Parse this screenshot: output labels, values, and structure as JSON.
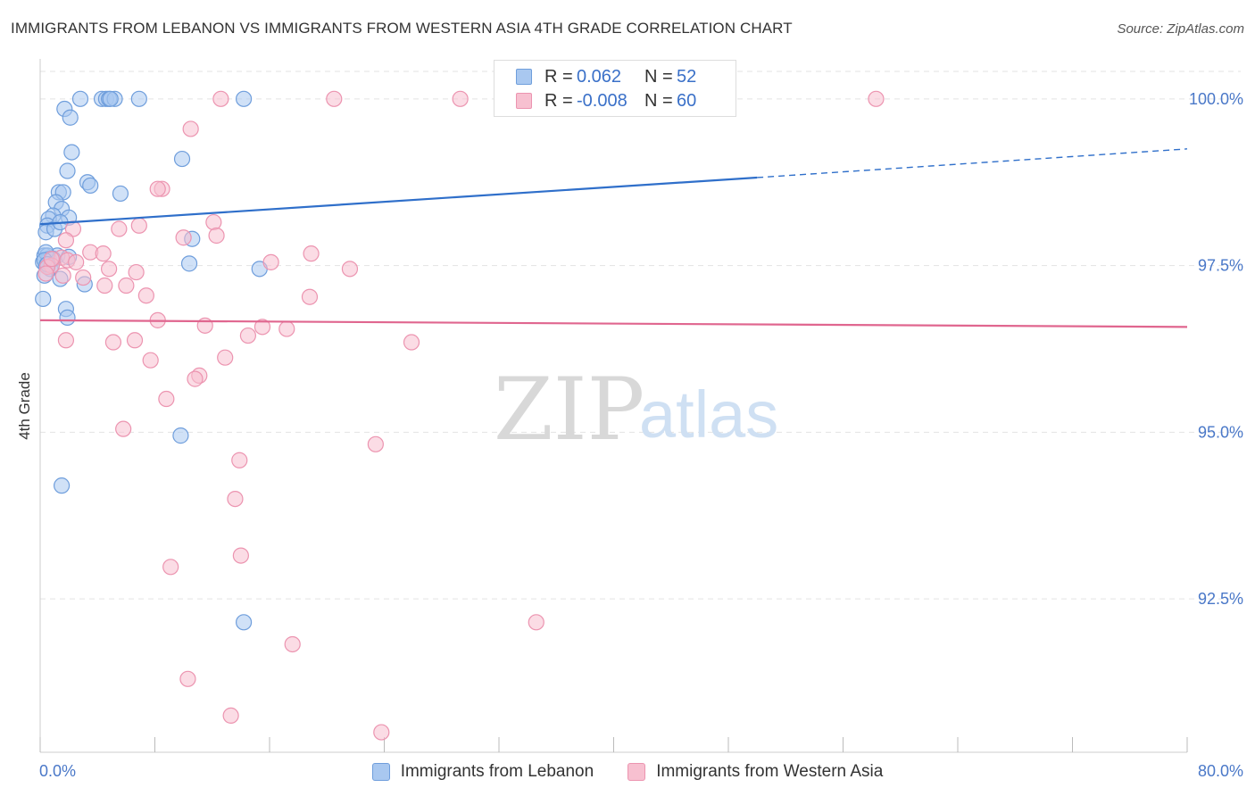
{
  "title": "IMMIGRANTS FROM LEBANON VS IMMIGRANTS FROM WESTERN ASIA 4TH GRADE CORRELATION CHART",
  "source": "Source: ZipAtlas.com",
  "watermark": {
    "zip": "ZIP",
    "atlas": "atlas"
  },
  "legend_top": {
    "rows": [
      {
        "r_label": "R =",
        "r_value": "0.062",
        "n_label": "N =",
        "n_value": "52"
      },
      {
        "r_label": "R =",
        "r_value": "-0.008",
        "n_label": "N =",
        "n_value": "60"
      }
    ]
  },
  "legend_bottom": [
    {
      "label": "Immigrants from Lebanon"
    },
    {
      "label": "Immigrants from Western Asia"
    }
  ],
  "colors": {
    "blue_fill": "#a9c8f0",
    "blue_stroke": "#6f9edc",
    "blue_line": "#2f6fca",
    "pink_fill": "#f7c0d0",
    "pink_stroke": "#ec94b0",
    "pink_line": "#e0668f",
    "tick_label": "#4a78c8",
    "grid": "#e3e3e3"
  },
  "chart_data": {
    "type": "scatter",
    "ylabel": "4th Grade",
    "xlim": [
      0,
      80
    ],
    "ylim": [
      90.2,
      100.6
    ],
    "x_tick_labels": [
      {
        "x": 0,
        "label": "0.0%"
      },
      {
        "x": 80,
        "label": "80.0%"
      }
    ],
    "y_tick_labels": [
      {
        "y": 100,
        "label": "100.0%"
      },
      {
        "y": 97.5,
        "label": "97.5%"
      },
      {
        "y": 95,
        "label": "95.0%"
      },
      {
        "y": 92.5,
        "label": "92.5%"
      }
    ],
    "grid": true,
    "series": [
      {
        "name": "Immigrants from Lebanon",
        "trend": {
          "x0": 0,
          "y0": 98.12,
          "x1": 50,
          "y1": 98.82,
          "x1_dashed": 80,
          "y1_dashed": 99.25
        },
        "points": [
          [
            2.8,
            100.0
          ],
          [
            4.3,
            100.0
          ],
          [
            4.6,
            100.0
          ],
          [
            4.8,
            100.0
          ],
          [
            5.2,
            100.0
          ],
          [
            6.9,
            100.0
          ],
          [
            14.2,
            100.0
          ],
          [
            1.7,
            99.85
          ],
          [
            2.1,
            99.72
          ],
          [
            2.2,
            99.2
          ],
          [
            9.9,
            99.1
          ],
          [
            1.9,
            98.92
          ],
          [
            3.3,
            98.75
          ],
          [
            3.5,
            98.7
          ],
          [
            1.3,
            98.6
          ],
          [
            1.6,
            98.6
          ],
          [
            5.6,
            98.58
          ],
          [
            1.1,
            98.45
          ],
          [
            1.5,
            98.35
          ],
          [
            0.9,
            98.25
          ],
          [
            2.0,
            98.22
          ],
          [
            0.6,
            98.2
          ],
          [
            0.5,
            98.1
          ],
          [
            0.4,
            98.0
          ],
          [
            10.6,
            97.9
          ],
          [
            0.3,
            97.65
          ],
          [
            0.5,
            97.65
          ],
          [
            1.2,
            97.65
          ],
          [
            2.0,
            97.63
          ],
          [
            0.6,
            97.6
          ],
          [
            0.2,
            97.55
          ],
          [
            0.4,
            97.5
          ],
          [
            0.7,
            97.45
          ],
          [
            0.8,
            97.5
          ],
          [
            10.4,
            97.53
          ],
          [
            15.3,
            97.45
          ],
          [
            0.3,
            97.35
          ],
          [
            1.4,
            97.3
          ],
          [
            3.1,
            97.22
          ],
          [
            0.2,
            97.0
          ],
          [
            1.8,
            96.85
          ],
          [
            1.9,
            96.72
          ],
          [
            9.8,
            94.95
          ],
          [
            1.5,
            94.2
          ],
          [
            14.2,
            92.15
          ],
          [
            0.4,
            97.7
          ],
          [
            0.9,
            97.6
          ],
          [
            1.0,
            98.05
          ],
          [
            0.3,
            97.58
          ],
          [
            1.4,
            98.15
          ],
          [
            0.5,
            97.52
          ],
          [
            4.9,
            100.0
          ]
        ]
      },
      {
        "name": "Immigrants from Western Asia",
        "trend": {
          "x0": 0,
          "y0": 96.68,
          "x1": 80,
          "y1": 96.58
        },
        "points": [
          [
            12.6,
            100.0
          ],
          [
            20.5,
            100.0
          ],
          [
            29.3,
            100.0
          ],
          [
            44.7,
            100.0
          ],
          [
            58.3,
            100.0
          ],
          [
            10.5,
            99.55
          ],
          [
            8.5,
            98.65
          ],
          [
            8.2,
            98.65
          ],
          [
            12.1,
            98.15
          ],
          [
            6.9,
            98.1
          ],
          [
            5.5,
            98.05
          ],
          [
            12.3,
            97.95
          ],
          [
            10.0,
            97.92
          ],
          [
            2.3,
            98.05
          ],
          [
            1.8,
            97.88
          ],
          [
            3.5,
            97.7
          ],
          [
            4.4,
            97.68
          ],
          [
            18.9,
            97.68
          ],
          [
            1.5,
            97.62
          ],
          [
            1.9,
            97.58
          ],
          [
            2.5,
            97.55
          ],
          [
            16.1,
            97.55
          ],
          [
            0.8,
            97.5
          ],
          [
            0.5,
            97.48
          ],
          [
            4.8,
            97.45
          ],
          [
            21.6,
            97.45
          ],
          [
            6.7,
            97.4
          ],
          [
            0.4,
            97.38
          ],
          [
            1.6,
            97.35
          ],
          [
            3.0,
            97.32
          ],
          [
            4.5,
            97.2
          ],
          [
            6.0,
            97.2
          ],
          [
            7.4,
            97.05
          ],
          [
            18.8,
            97.03
          ],
          [
            8.2,
            96.68
          ],
          [
            11.5,
            96.6
          ],
          [
            15.5,
            96.58
          ],
          [
            17.2,
            96.55
          ],
          [
            14.5,
            96.45
          ],
          [
            1.8,
            96.38
          ],
          [
            5.1,
            96.35
          ],
          [
            6.6,
            96.38
          ],
          [
            25.9,
            96.35
          ],
          [
            12.9,
            96.12
          ],
          [
            7.7,
            96.08
          ],
          [
            11.1,
            95.85
          ],
          [
            10.8,
            95.8
          ],
          [
            8.8,
            95.5
          ],
          [
            5.8,
            95.05
          ],
          [
            23.4,
            94.82
          ],
          [
            13.9,
            94.58
          ],
          [
            13.6,
            94.0
          ],
          [
            14.0,
            93.15
          ],
          [
            9.1,
            92.98
          ],
          [
            34.6,
            92.15
          ],
          [
            17.6,
            91.82
          ],
          [
            10.3,
            91.3
          ],
          [
            13.3,
            90.75
          ],
          [
            23.8,
            90.5
          ],
          [
            0.8,
            97.6
          ]
        ]
      }
    ]
  }
}
